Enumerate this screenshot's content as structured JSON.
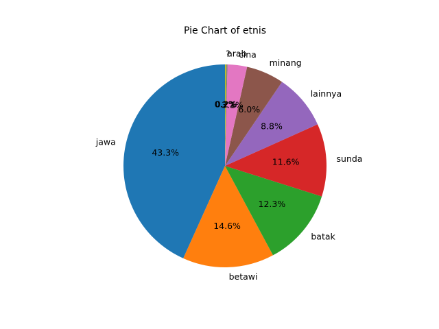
{
  "chart_data": {
    "type": "pie",
    "title": "Pie Chart of etnis",
    "start_angle_deg": 90,
    "direction": "counterclockwise",
    "slices": [
      {
        "label": "jawa",
        "value": 43.3,
        "pct_label": "43.3%",
        "color": "#1f77b4"
      },
      {
        "label": "betawi",
        "value": 14.6,
        "pct_label": "14.6%",
        "color": "#ff7f0e"
      },
      {
        "label": "batak",
        "value": 12.3,
        "pct_label": "12.3%",
        "color": "#2ca02c"
      },
      {
        "label": "sunda",
        "value": 11.6,
        "pct_label": "11.6%",
        "color": "#d62728"
      },
      {
        "label": "lainnya",
        "value": 8.8,
        "pct_label": "8.8%",
        "color": "#9467bd"
      },
      {
        "label": "minang",
        "value": 6.0,
        "pct_label": "6.0%",
        "color": "#8c564b"
      },
      {
        "label": "cina",
        "value": 3.1,
        "pct_label": "3.1%",
        "color": "#e377c2"
      },
      {
        "label": "arab",
        "value": 0.2,
        "pct_label": "0.2%",
        "color": "#7f7f7f"
      },
      {
        "label": "?",
        "value": 0.2,
        "pct_label": "0.2%",
        "color": "#bcbd22"
      }
    ]
  }
}
